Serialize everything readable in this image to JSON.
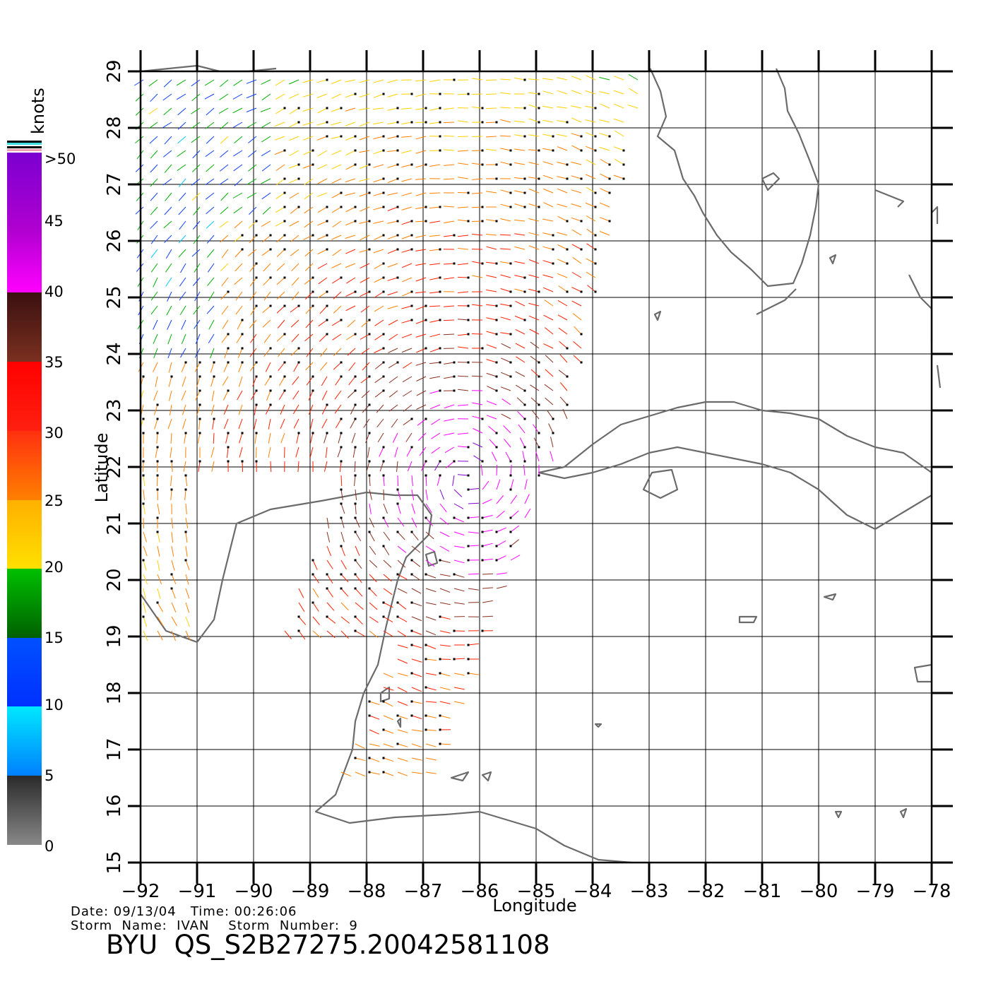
{
  "map": {
    "x_label": "Longitude",
    "y_label": "Latitude",
    "lon_range": [
      -92,
      -78
    ],
    "lat_range": [
      15,
      29
    ],
    "lon_ticks": [
      "−92",
      "−91",
      "−90",
      "−89",
      "−88",
      "−87",
      "−86",
      "−85",
      "−84",
      "−83",
      "−82",
      "−81",
      "−80",
      "−79",
      "−78"
    ],
    "lat_ticks": [
      "15",
      "16",
      "17",
      "18",
      "19",
      "20",
      "21",
      "22",
      "23",
      "24",
      "25",
      "26",
      "27",
      "28",
      "29"
    ],
    "grid": true,
    "coastline_color": "#6b6b6b"
  },
  "colorbar": {
    "title": "knots",
    "labels": [
      "0",
      "5",
      "10",
      "15",
      "20",
      "25",
      "30",
      "35",
      "40",
      "45",
      ">50"
    ],
    "colors": {
      "gray": "#888888",
      "cyan": "#00e8ff",
      "blue": "#0030ff",
      "green": "#00c000",
      "yellow": "#ffe000",
      "orange": "#ff8000",
      "red": "#ff0000",
      "brown": "#7a3020",
      "magenta": "#ff00ff",
      "purple": "#7a00d0"
    }
  },
  "info": {
    "line1": "Date: 09/13/04   Time: 00:26:06",
    "line2": "Storm  Name:  IVAN    Storm  Number:  9",
    "title": "BYU  QS_S2B27275.20042581108"
  }
}
